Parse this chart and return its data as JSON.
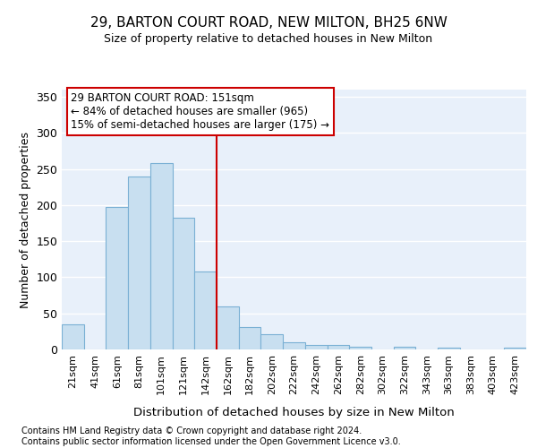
{
  "title1": "29, BARTON COURT ROAD, NEW MILTON, BH25 6NW",
  "title2": "Size of property relative to detached houses in New Milton",
  "xlabel": "Distribution of detached houses by size in New Milton",
  "ylabel": "Number of detached properties",
  "bar_labels": [
    "21sqm",
    "41sqm",
    "61sqm",
    "81sqm",
    "101sqm",
    "121sqm",
    "142sqm",
    "162sqm",
    "182sqm",
    "202sqm",
    "222sqm",
    "242sqm",
    "262sqm",
    "282sqm",
    "302sqm",
    "322sqm",
    "343sqm",
    "363sqm",
    "383sqm",
    "403sqm",
    "423sqm"
  ],
  "bar_values": [
    35,
    0,
    198,
    240,
    258,
    183,
    108,
    60,
    31,
    21,
    10,
    6,
    6,
    4,
    0,
    4,
    0,
    2,
    0,
    0,
    2
  ],
  "bar_color": "#c8dff0",
  "bar_edge_color": "#7ab0d4",
  "background_color": "#e8f0fa",
  "grid_color": "#ffffff",
  "property_line_color": "#cc0000",
  "annotation_text": "29 BARTON COURT ROAD: 151sqm\n← 84% of detached houses are smaller (965)\n15% of semi-detached houses are larger (175) →",
  "annotation_box_color": "#ffffff",
  "annotation_box_edge": "#cc0000",
  "ylim": [
    0,
    360
  ],
  "yticks": [
    0,
    50,
    100,
    150,
    200,
    250,
    300,
    350
  ],
  "footer_text": "Contains HM Land Registry data © Crown copyright and database right 2024.\nContains public sector information licensed under the Open Government Licence v3.0.",
  "red_line_bar_index": 7,
  "title1_fontsize": 11,
  "title2_fontsize": 9
}
